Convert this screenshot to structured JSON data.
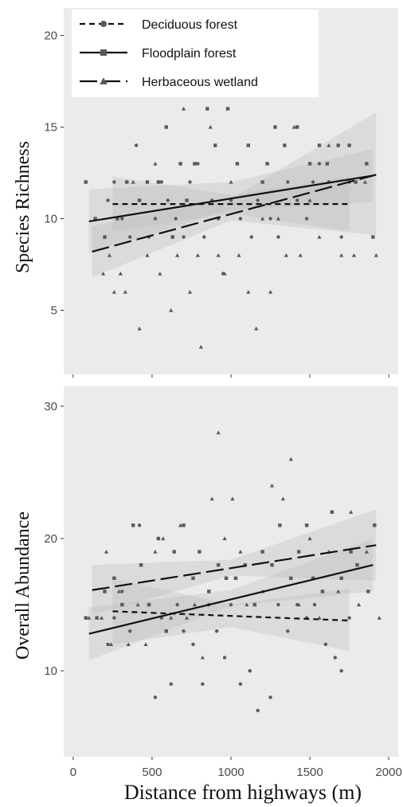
{
  "chart_data": [
    {
      "type": "scatter",
      "ylabel": "Species Richness",
      "ylim": [
        1.5,
        21.5
      ],
      "yticks": [
        5,
        10,
        15,
        20
      ],
      "xlim": [
        -60,
        2060
      ],
      "grid": false,
      "legend": {
        "position": "top-left",
        "entries": [
          {
            "name": "Deciduous forest",
            "line": "short-dash",
            "marker": "circle"
          },
          {
            "name": "Floodplain forest",
            "line": "solid",
            "marker": "square"
          },
          {
            "name": "Herbaceous wetland",
            "line": "long-dash",
            "marker": "triangle"
          }
        ]
      },
      "series": [
        {
          "name": "Deciduous forest",
          "trend": [
            [
              250,
              10.8
            ],
            [
              1750,
              10.8
            ]
          ],
          "band": {
            "x": [
              250,
              1000,
              1750
            ],
            "lo": [
              9.3,
              10.3,
              9.3
            ],
            "hi": [
              12.3,
              11.3,
              12.3
            ]
          },
          "points": [
            [
              220,
              11
            ],
            [
              260,
              12
            ],
            [
              310,
              10
            ],
            [
              360,
              9
            ],
            [
              400,
              14
            ],
            [
              480,
              9
            ],
            [
              520,
              10
            ],
            [
              560,
              12
            ],
            [
              600,
              11
            ],
            [
              650,
              10
            ],
            [
              700,
              9
            ],
            [
              740,
              12
            ],
            [
              790,
              13
            ],
            [
              830,
              9
            ],
            [
              880,
              11
            ],
            [
              920,
              10
            ],
            [
              950,
              7
            ],
            [
              1000,
              11
            ],
            [
              1060,
              10
            ],
            [
              1130,
              9
            ],
            [
              1170,
              11
            ],
            [
              1250,
              10
            ],
            [
              1300,
              9
            ],
            [
              1360,
              12
            ],
            [
              1420,
              11
            ],
            [
              1480,
              10
            ],
            [
              1520,
              12
            ],
            [
              1560,
              13
            ],
            [
              1620,
              12
            ],
            [
              1700,
              9
            ],
            [
              1750,
              12
            ]
          ]
        },
        {
          "name": "Floodplain forest",
          "trend": [
            [
              100,
              9.85
            ],
            [
              1900,
              12.35
            ]
          ],
          "band": {
            "x": [
              100,
              1000,
              1900
            ],
            "lo": [
              8.1,
              10.5,
              10.9
            ],
            "hi": [
              11.6,
              12.0,
              13.8
            ]
          },
          "points": [
            [
              80,
              12
            ],
            [
              140,
              10
            ],
            [
              200,
              9
            ],
            [
              280,
              10
            ],
            [
              340,
              12
            ],
            [
              420,
              11
            ],
            [
              470,
              12
            ],
            [
              540,
              12
            ],
            [
              590,
              15
            ],
            [
              630,
              9
            ],
            [
              680,
              13
            ],
            [
              720,
              11
            ],
            [
              770,
              13
            ],
            [
              850,
              16
            ],
            [
              900,
              14
            ],
            [
              980,
              16
            ],
            [
              1040,
              13
            ],
            [
              1110,
              14
            ],
            [
              1200,
              12
            ],
            [
              1230,
              13
            ],
            [
              1280,
              15
            ],
            [
              1340,
              14
            ],
            [
              1420,
              15
            ],
            [
              1500,
              13
            ],
            [
              1560,
              14
            ],
            [
              1610,
              13
            ],
            [
              1680,
              14
            ],
            [
              1750,
              14
            ],
            [
              1790,
              12
            ],
            [
              1860,
              13
            ],
            [
              1900,
              9
            ]
          ]
        },
        {
          "name": "Herbaceous wetland",
          "trend": [
            [
              120,
              8.2
            ],
            [
              1920,
              12.4
            ]
          ],
          "band": {
            "x": [
              120,
              1000,
              1920
            ],
            "lo": [
              6.8,
              9.9,
              9.1
            ],
            "hi": [
              9.6,
              11.1,
              15.8
            ]
          },
          "points": [
            [
              190,
              7
            ],
            [
              230,
              8
            ],
            [
              260,
              6
            ],
            [
              300,
              7
            ],
            [
              330,
              6
            ],
            [
              380,
              12
            ],
            [
              420,
              4
            ],
            [
              470,
              8
            ],
            [
              520,
              13
            ],
            [
              550,
              7
            ],
            [
              620,
              5
            ],
            [
              660,
              8
            ],
            [
              700,
              16
            ],
            [
              740,
              6
            ],
            [
              790,
              8
            ],
            [
              810,
              3
            ],
            [
              870,
              15
            ],
            [
              920,
              8
            ],
            [
              960,
              7
            ],
            [
              1000,
              12
            ],
            [
              1050,
              8
            ],
            [
              1110,
              6
            ],
            [
              1160,
              4
            ],
            [
              1200,
              10
            ],
            [
              1250,
              6
            ],
            [
              1300,
              10
            ],
            [
              1350,
              8
            ],
            [
              1400,
              15
            ],
            [
              1440,
              8
            ],
            [
              1500,
              11
            ],
            [
              1560,
              9
            ],
            [
              1620,
              14
            ],
            [
              1700,
              8
            ],
            [
              1780,
              8
            ],
            [
              1850,
              12
            ],
            [
              1920,
              8
            ]
          ]
        }
      ]
    },
    {
      "type": "scatter",
      "ylabel": "Overall Abundance",
      "ylim": [
        3.5,
        31.5
      ],
      "yticks": [
        10,
        20,
        30
      ],
      "xlim": [
        -60,
        2060
      ],
      "xlabel": "Distance from highways (m)",
      "xticks": [
        0,
        500,
        1000,
        1500,
        2000
      ],
      "grid": false,
      "series": [
        {
          "name": "Deciduous forest",
          "trend": [
            [
              250,
              14.5
            ],
            [
              1750,
              13.8
            ]
          ],
          "band": {
            "x": [
              250,
              1000,
              1750
            ],
            "lo": [
              12.0,
              13.3,
              11.5
            ],
            "hi": [
              17.0,
              15.0,
              16.2
            ]
          },
          "points": [
            [
              220,
              12
            ],
            [
              260,
              14
            ],
            [
              310,
              16
            ],
            [
              360,
              13
            ],
            [
              420,
              21
            ],
            [
              480,
              15
            ],
            [
              520,
              8
            ],
            [
              560,
              14
            ],
            [
              620,
              9
            ],
            [
              660,
              15
            ],
            [
              700,
              13
            ],
            [
              760,
              12
            ],
            [
              820,
              9
            ],
            [
              860,
              15
            ],
            [
              910,
              13
            ],
            [
              960,
              11
            ],
            [
              1000,
              15
            ],
            [
              1060,
              9
            ],
            [
              1120,
              10
            ],
            [
              1170,
              7
            ],
            [
              1250,
              8
            ],
            [
              1300,
              15
            ],
            [
              1360,
              13
            ],
            [
              1420,
              15
            ],
            [
              1480,
              14
            ],
            [
              1530,
              15
            ],
            [
              1600,
              12
            ],
            [
              1660,
              11
            ],
            [
              1700,
              10
            ],
            [
              1750,
              14
            ]
          ]
        },
        {
          "name": "Floodplain forest",
          "trend": [
            [
              100,
              12.8
            ],
            [
              1900,
              18.0
            ]
          ],
          "band": {
            "x": [
              100,
              1000,
              1900
            ],
            "lo": [
              10.8,
              14.9,
              16.0
            ],
            "hi": [
              14.8,
              16.1,
              20.0
            ]
          },
          "points": [
            [
              80,
              14
            ],
            [
              150,
              14
            ],
            [
              200,
              16
            ],
            [
              260,
              17
            ],
            [
              310,
              15
            ],
            [
              380,
              21
            ],
            [
              430,
              18
            ],
            [
              480,
              15
            ],
            [
              540,
              20
            ],
            [
              590,
              13
            ],
            [
              640,
              19
            ],
            [
              700,
              21
            ],
            [
              760,
              17
            ],
            [
              800,
              19
            ],
            [
              860,
              16
            ],
            [
              920,
              18
            ],
            [
              970,
              17
            ],
            [
              1030,
              17
            ],
            [
              1090,
              18
            ],
            [
              1150,
              15
            ],
            [
              1200,
              19
            ],
            [
              1260,
              18
            ],
            [
              1310,
              21
            ],
            [
              1380,
              17
            ],
            [
              1430,
              19
            ],
            [
              1480,
              21
            ],
            [
              1520,
              17
            ],
            [
              1580,
              16
            ],
            [
              1640,
              22
            ],
            [
              1700,
              17
            ],
            [
              1760,
              19
            ],
            [
              1800,
              18
            ],
            [
              1870,
              16
            ],
            [
              1910,
              21
            ]
          ]
        },
        {
          "name": "Herbaceous wetland",
          "trend": [
            [
              120,
              16.1
            ],
            [
              1920,
              19.5
            ]
          ],
          "band": {
            "x": [
              120,
              1000,
              1920
            ],
            "lo": [
              14.2,
              17.2,
              16.8
            ],
            "hi": [
              18.0,
              18.4,
              22.2
            ]
          },
          "points": [
            [
              100,
              14
            ],
            [
              180,
              14
            ],
            [
              210,
              19
            ],
            [
              240,
              12
            ],
            [
              290,
              16
            ],
            [
              350,
              12
            ],
            [
              410,
              15
            ],
            [
              460,
              12
            ],
            [
              520,
              19
            ],
            [
              570,
              20
            ],
            [
              620,
              14
            ],
            [
              680,
              21
            ],
            [
              720,
              14
            ],
            [
              770,
              15
            ],
            [
              820,
              11
            ],
            [
              880,
              23
            ],
            [
              920,
              28
            ],
            [
              960,
              20
            ],
            [
              1010,
              23
            ],
            [
              1060,
              19
            ],
            [
              1100,
              15
            ],
            [
              1150,
              15
            ],
            [
              1200,
              16
            ],
            [
              1260,
              24
            ],
            [
              1330,
              23
            ],
            [
              1380,
              26
            ],
            [
              1430,
              15
            ],
            [
              1500,
              20
            ],
            [
              1560,
              14
            ],
            [
              1620,
              19
            ],
            [
              1680,
              16
            ],
            [
              1760,
              22
            ],
            [
              1810,
              15
            ],
            [
              1860,
              19
            ],
            [
              1940,
              14
            ]
          ]
        }
      ]
    }
  ]
}
